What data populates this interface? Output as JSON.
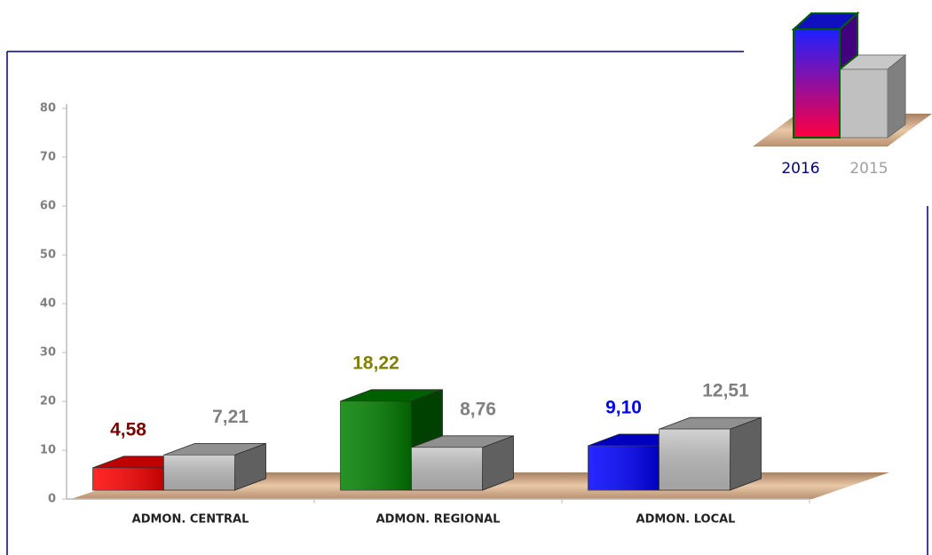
{
  "chart_data": {
    "type": "bar3d",
    "categories": [
      "ADMON. CENTRAL",
      "ADMON. REGIONAL",
      "ADMON. LOCAL"
    ],
    "series": [
      {
        "name": "2016",
        "colors": [
          "#ff0000",
          "#008000",
          "#0000ff"
        ],
        "label_colors": [
          "#7f0000",
          "#808000",
          "#0000ff"
        ],
        "legend_color": "#000080",
        "values": [
          4.58,
          18.22,
          9.1
        ],
        "value_labels": [
          "4,58",
          "18,22",
          "9,10"
        ]
      },
      {
        "name": "2015",
        "color": "#c0c0c0",
        "label_color": "#808080",
        "legend_color": "#a0a0a0",
        "values": [
          7.21,
          8.76,
          12.51
        ],
        "value_labels": [
          "7,21",
          "8,76",
          "12,51"
        ]
      }
    ],
    "ylim": [
      0,
      80
    ],
    "yticks": [
      0,
      10,
      20,
      30,
      40,
      50,
      60,
      70,
      80
    ]
  }
}
